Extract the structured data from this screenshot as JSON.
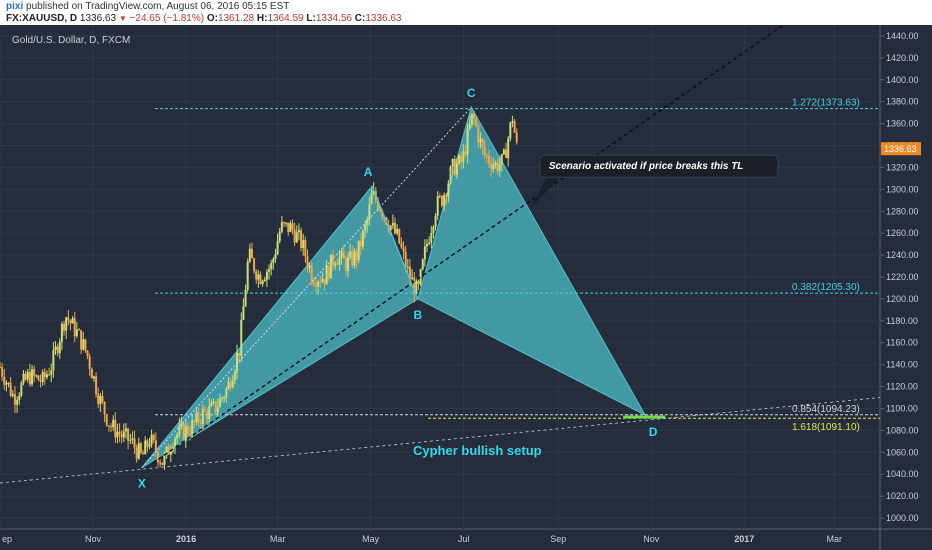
{
  "header": {
    "brand": "pixi",
    "published": "published on TradingView.com, August 06, 2016 05:15 EST",
    "symbol": "FX:XAUUSD, D",
    "last": "1336.63",
    "change": "−24.65 (−1.81%)",
    "open_label": "O:",
    "open": "1361.28",
    "high_label": "H:",
    "high": "1364.59",
    "low_label": "L:",
    "low": "1334.56",
    "close_label": "C:",
    "close": "1336.63"
  },
  "colors": {
    "background": "#252c3b",
    "grid": "#2f3748",
    "up_candle": "#c9e07a",
    "down_candle": "#f0a64a",
    "pattern_fill": "#4fc3cc",
    "pattern_label": "#36d7e8",
    "fib_cyan": "#3fd2e0",
    "fib_yellow": "#e5e54a",
    "price_tag": "#f08a24"
  },
  "chart_data": {
    "type": "candlestick",
    "title": "Gold/U.S. Dollar, D, FXCM",
    "ylim": [
      990,
      1450
    ],
    "y_ticks": [
      1000,
      1020,
      1040,
      1060,
      1080,
      1100,
      1120,
      1140,
      1160,
      1180,
      1200,
      1220,
      1240,
      1260,
      1280,
      1300,
      1320,
      1340,
      1360,
      1380,
      1400,
      1420,
      1440
    ],
    "y_tick_labels": [
      "1000.00",
      "1020.00",
      "1040.00",
      "1060.00",
      "1080.00",
      "1100.00",
      "1120.00",
      "1140.00",
      "1160.00",
      "1180.00",
      "1200.00",
      "1220.00",
      "1240.00",
      "1260.00",
      "1280.00",
      "1300.00",
      "1320.00",
      "1340.00",
      "1360.00",
      "1380.00",
      "1400.00",
      "1420.00",
      "1440.00"
    ],
    "x_start": "2015-09-01",
    "x_end": "2017-03-31",
    "x_ticks": [
      {
        "date": "2015-09-01",
        "label": "ep"
      },
      {
        "date": "2015-11-01",
        "label": "Nov"
      },
      {
        "date": "2016-01-01",
        "label": "2016"
      },
      {
        "date": "2016-03-01",
        "label": "Mar"
      },
      {
        "date": "2016-05-01",
        "label": "May"
      },
      {
        "date": "2016-07-01",
        "label": "Jul"
      },
      {
        "date": "2016-09-01",
        "label": "Sep"
      },
      {
        "date": "2016-11-01",
        "label": "Nov"
      },
      {
        "date": "2017-01-01",
        "label": "2017"
      },
      {
        "date": "2017-03-01",
        "label": "Mar"
      }
    ],
    "last_price": "1336.63",
    "price_path": [
      [
        "2015-09-01",
        1138
      ],
      [
        "2015-09-10",
        1110
      ],
      [
        "2015-09-20",
        1130
      ],
      [
        "2015-09-29",
        1125
      ],
      [
        "2015-10-05",
        1140
      ],
      [
        "2015-10-14",
        1185
      ],
      [
        "2015-10-22",
        1168
      ],
      [
        "2015-10-28",
        1150
      ],
      [
        "2015-11-05",
        1110
      ],
      [
        "2015-11-12",
        1085
      ],
      [
        "2015-11-20",
        1075
      ],
      [
        "2015-11-26",
        1070
      ],
      [
        "2015-12-03",
        1055
      ],
      [
        "2015-12-08",
        1072
      ],
      [
        "2015-12-17",
        1050
      ],
      [
        "2015-12-24",
        1075
      ],
      [
        "2016-01-04",
        1082
      ],
      [
        "2016-01-12",
        1095
      ],
      [
        "2016-01-20",
        1100
      ],
      [
        "2016-01-28",
        1118
      ],
      [
        "2016-02-05",
        1155
      ],
      [
        "2016-02-11",
        1240
      ],
      [
        "2016-02-18",
        1220
      ],
      [
        "2016-02-26",
        1230
      ],
      [
        "2016-03-03",
        1265
      ],
      [
        "2016-03-10",
        1265
      ],
      [
        "2016-03-17",
        1250
      ],
      [
        "2016-03-24",
        1220
      ],
      [
        "2016-04-01",
        1220
      ],
      [
        "2016-04-08",
        1240
      ],
      [
        "2016-04-15",
        1232
      ],
      [
        "2016-04-22",
        1240
      ],
      [
        "2016-04-28",
        1266
      ],
      [
        "2016-05-02",
        1295
      ],
      [
        "2016-05-06",
        1288
      ],
      [
        "2016-05-12",
        1272
      ],
      [
        "2016-05-19",
        1255
      ],
      [
        "2016-05-26",
        1222
      ],
      [
        "2016-06-01",
        1205
      ],
      [
        "2016-06-06",
        1245
      ],
      [
        "2016-06-13",
        1285
      ],
      [
        "2016-06-17",
        1292
      ],
      [
        "2016-06-24",
        1320
      ],
      [
        "2016-06-30",
        1325
      ],
      [
        "2016-07-04",
        1350
      ],
      [
        "2016-07-07",
        1368
      ],
      [
        "2016-07-14",
        1332
      ],
      [
        "2016-07-22",
        1322
      ],
      [
        "2016-07-27",
        1325
      ],
      [
        "2016-08-02",
        1366
      ],
      [
        "2016-08-05",
        1336
      ]
    ],
    "pattern": {
      "name": "Cypher bullish setup",
      "points": [
        {
          "label": "X",
          "date": "2015-12-03",
          "price": 1046
        },
        {
          "label": "A",
          "date": "2016-05-02",
          "price": 1303
        },
        {
          "label": "B",
          "date": "2016-06-01",
          "price": 1200
        },
        {
          "label": "C",
          "date": "2016-07-06",
          "price": 1375
        },
        {
          "label": "D",
          "date": "2016-10-28",
          "price": 1094
        }
      ]
    },
    "fib_levels": [
      {
        "label": "1.272(1373.63)",
        "value": 1373.63,
        "color": "cyan"
      },
      {
        "label": "0.382(1205.30)",
        "value": 1205.3,
        "color": "cyan"
      },
      {
        "label": "0.854(1094.23)",
        "value": 1094.23,
        "color": "white"
      },
      {
        "label": "1.618(1091.10)",
        "value": 1091.1,
        "color": "yellow"
      }
    ],
    "trendlines": [
      {
        "from": {
          "date": "2015-12-10",
          "price": 1050
        },
        "to": {
          "date": "2017-02-01",
          "price": 1455
        },
        "style": "dashed-dark"
      },
      {
        "from": {
          "date": "2015-09-01",
          "price": 1032
        },
        "to": {
          "date": "2017-03-31",
          "price": 1110
        },
        "style": "dashed-light"
      },
      {
        "from": {
          "date": "2015-12-03",
          "price": 1046
        },
        "to": {
          "date": "2016-07-06",
          "price": 1375
        },
        "style": "dotted-light"
      }
    ],
    "annotations": [
      {
        "text": "Scenario activated if price breaks this TL",
        "date": "2016-08-20",
        "price": 1322
      }
    ]
  }
}
